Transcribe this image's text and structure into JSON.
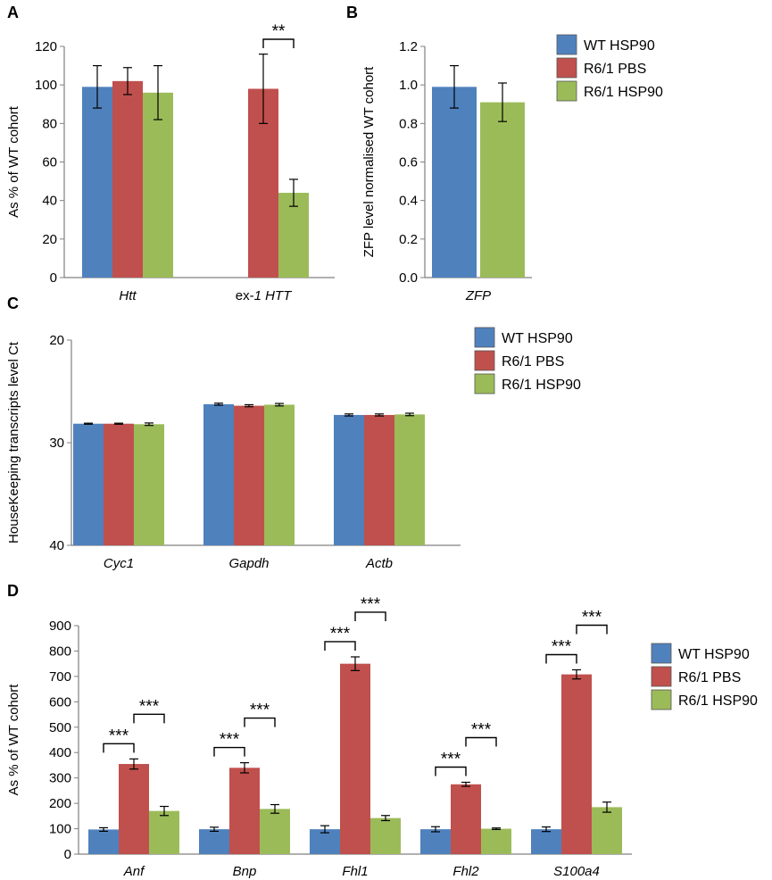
{
  "colors": {
    "wt_hsp90": "#4F81BD",
    "r61_pbs": "#C0504D",
    "r61_hsp90": "#9BBB59",
    "axis": "#808080",
    "error": "#000000"
  },
  "legend": [
    "WT HSP90",
    "R6/1 PBS",
    "R6/1 HSP90"
  ],
  "chart_data": [
    {
      "panel": "A",
      "type": "bar",
      "categories": [
        {
          "label": "Htt",
          "italic": true
        },
        {
          "prefix": "ex-",
          "label": "1 HTT",
          "italic": true
        }
      ],
      "series": [
        {
          "name": "WT HSP90",
          "values": [
            99,
            null
          ],
          "errors": [
            11,
            null
          ]
        },
        {
          "name": "R6/1 PBS",
          "values": [
            102,
            98
          ],
          "errors": [
            7,
            18
          ]
        },
        {
          "name": "R6/1 HSP90",
          "values": [
            96,
            44
          ],
          "errors": [
            14,
            7
          ]
        }
      ],
      "ylabel": "As % of WT cohort",
      "ylim": [
        0,
        120
      ],
      "yticks": [
        "0",
        "20",
        "40",
        "60",
        "80",
        "100",
        "120"
      ],
      "significance": [
        {
          "category": 1,
          "from": 1,
          "to": 2,
          "label": "**"
        }
      ]
    },
    {
      "panel": "B",
      "type": "bar",
      "categories": [
        {
          "label": "ZFP",
          "italic": true
        }
      ],
      "series": [
        {
          "name": "WT HSP90",
          "values": [
            0.99
          ],
          "errors": [
            0.11
          ]
        },
        {
          "name": "R6/1 HSP90",
          "values": [
            0.91
          ],
          "errors": [
            0.1
          ]
        }
      ],
      "ylabel": "ZFP level normalised WT cohort",
      "ylim": [
        0,
        1.2
      ],
      "yticks": [
        "0.0",
        "0.2",
        "0.4",
        "0.6",
        "0.8",
        "1.0",
        "1.2"
      ],
      "legend": [
        "WT HSP90",
        "R6/1 PBS",
        "R6/1 HSP90"
      ]
    },
    {
      "panel": "C",
      "type": "bar",
      "categories": [
        {
          "label": "Cyc1",
          "italic": true
        },
        {
          "label": "Gapdh",
          "italic": true
        },
        {
          "label": "Actb",
          "italic": true
        }
      ],
      "series": [
        {
          "name": "WT HSP90",
          "values": [
            28.15,
            26.25,
            27.3
          ],
          "errors": [
            0.05,
            0.1,
            0.1
          ]
        },
        {
          "name": "R6/1 PBS",
          "values": [
            28.15,
            26.4,
            27.3
          ],
          "errors": [
            0.05,
            0.1,
            0.1
          ]
        },
        {
          "name": "R6/1 HSP90",
          "values": [
            28.2,
            26.3,
            27.25
          ],
          "errors": [
            0.12,
            0.12,
            0.12
          ]
        }
      ],
      "ylabel": "HouseKeeping transcripts level Ct",
      "ylim": [
        20,
        40
      ],
      "inverted": true,
      "yticks": [
        "20",
        "30",
        "40"
      ],
      "legend": [
        "WT HSP90",
        "R6/1 PBS",
        "R6/1 HSP90"
      ]
    },
    {
      "panel": "D",
      "type": "bar",
      "categories": [
        {
          "label": "Anf",
          "italic": true
        },
        {
          "label": "Bnp",
          "italic": true
        },
        {
          "label": "Fhl1",
          "italic": true
        },
        {
          "label": "Fhl2",
          "italic": true
        },
        {
          "label": "S100a4",
          "italic": true
        }
      ],
      "series": [
        {
          "name": "WT HSP90",
          "values": [
            97,
            98,
            98,
            98,
            98
          ],
          "errors": [
            7,
            8,
            14,
            10,
            9
          ]
        },
        {
          "name": "R6/1 PBS",
          "values": [
            355,
            340,
            750,
            275,
            708
          ],
          "errors": [
            20,
            20,
            27,
            8,
            18
          ]
        },
        {
          "name": "R6/1 HSP90",
          "values": [
            170,
            178,
            142,
            100,
            185
          ],
          "errors": [
            18,
            17,
            10,
            3,
            20
          ]
        }
      ],
      "ylabel": "As % of WT cohort",
      "ylim": [
        0,
        900
      ],
      "yticks": [
        "0",
        "100",
        "200",
        "300",
        "400",
        "500",
        "600",
        "700",
        "800",
        "900"
      ],
      "legend": [
        "WT HSP90",
        "R6/1 PBS",
        "R6/1 HSP90"
      ],
      "significance": [
        {
          "category": 0,
          "from": 0,
          "to": 1,
          "label": "***"
        },
        {
          "category": 0,
          "from": 1,
          "to": 2,
          "label": "***"
        },
        {
          "category": 1,
          "from": 0,
          "to": 1,
          "label": "***"
        },
        {
          "category": 1,
          "from": 1,
          "to": 2,
          "label": "***"
        },
        {
          "category": 2,
          "from": 0,
          "to": 1,
          "label": "***"
        },
        {
          "category": 2,
          "from": 1,
          "to": 2,
          "label": "***"
        },
        {
          "category": 3,
          "from": 0,
          "to": 1,
          "label": "***"
        },
        {
          "category": 3,
          "from": 1,
          "to": 2,
          "label": "***"
        },
        {
          "category": 4,
          "from": 0,
          "to": 1,
          "label": "***"
        },
        {
          "category": 4,
          "from": 1,
          "to": 2,
          "label": "***"
        }
      ]
    }
  ]
}
